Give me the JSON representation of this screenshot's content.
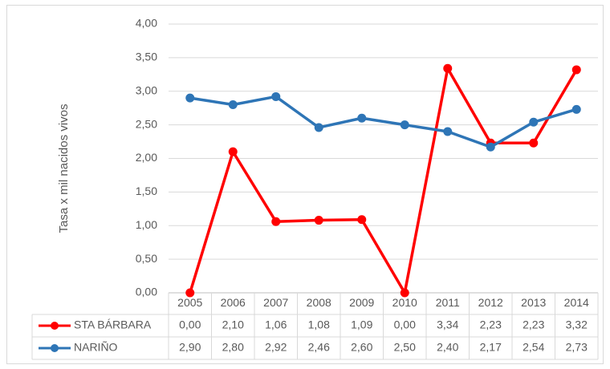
{
  "chart_data": {
    "type": "line",
    "y_axis_label": "Tasa x mil nacidos vivos",
    "categories": [
      "2005",
      "2006",
      "2007",
      "2008",
      "2009",
      "2010",
      "2011",
      "2012",
      "2013",
      "2014"
    ],
    "series": [
      {
        "name": "STA BÁRBARA",
        "color": "#ff0000",
        "values": [
          0,
          2.1,
          1.06,
          1.08,
          1.09,
          0,
          3.34,
          2.23,
          2.23,
          3.32
        ],
        "value_labels": [
          "0,00",
          "2,10",
          "1,06",
          "1,08",
          "1,09",
          "0,00",
          "3,34",
          "2,23",
          "2,23",
          "3,32"
        ]
      },
      {
        "name": "NARIÑO",
        "color": "#2e75b6",
        "values": [
          2.9,
          2.8,
          2.92,
          2.46,
          2.6,
          2.5,
          2.4,
          2.17,
          2.54,
          2.73
        ],
        "value_labels": [
          "2,90",
          "2,80",
          "2,92",
          "2,46",
          "2,60",
          "2,50",
          "2,40",
          "2,17",
          "2,54",
          "2,73"
        ]
      }
    ],
    "ylim": [
      0,
      4
    ],
    "yticks": [
      {
        "value": 0,
        "label": "0,00"
      },
      {
        "value": 0.5,
        "label": "0,50"
      },
      {
        "value": 1,
        "label": "1,00"
      },
      {
        "value": 1.5,
        "label": "1,50"
      },
      {
        "value": 2,
        "label": "2,00"
      },
      {
        "value": 2.5,
        "label": "2,50"
      },
      {
        "value": 3,
        "label": "3,00"
      },
      {
        "value": 3.5,
        "label": "3,50"
      },
      {
        "value": 4,
        "label": "4,00"
      }
    ],
    "grid": true
  }
}
